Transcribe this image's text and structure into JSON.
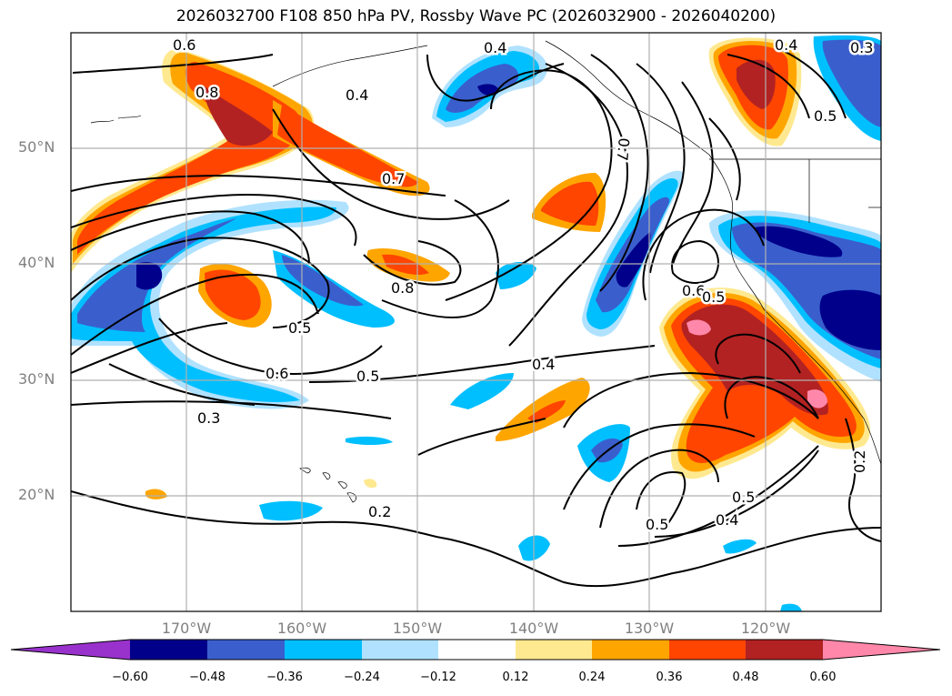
{
  "title": "2026032700 F108 850 hPa PV, Rossby Wave PC (2026032900 - 2026040200)",
  "lat_labels": [
    "50°N",
    "40°N",
    "30°N",
    "20°N"
  ],
  "lon_labels": [
    "170°W",
    "160°W",
    "150°W",
    "140°W",
    "130°W",
    "120°W"
  ],
  "contour_labels": [
    "0.6",
    "0.8",
    "0.4",
    "0.4",
    "0.4",
    "0.3",
    "0.5",
    "0.7",
    "0.7",
    "0.8",
    "0.5",
    "0.6",
    "0.5",
    "0.6",
    "0.5",
    "0.4",
    "0.3",
    "0.2",
    "0.5",
    "0.4",
    "0.5",
    "0.2"
  ],
  "colorbar": {
    "ticks": [
      "−0.60",
      "−0.48",
      "−0.36",
      "−0.24",
      "−0.12",
      "0.12",
      "0.24",
      "0.36",
      "0.48",
      "0.60"
    ],
    "colors": [
      "#9932cc",
      "#00008b",
      "#3a5fcd",
      "#00bfff",
      "#b0e2ff",
      "#ffffff",
      "#ffe990",
      "#ffa500",
      "#ff4500",
      "#b22222",
      "#ff88aa",
      "#ff88aa"
    ]
  }
}
